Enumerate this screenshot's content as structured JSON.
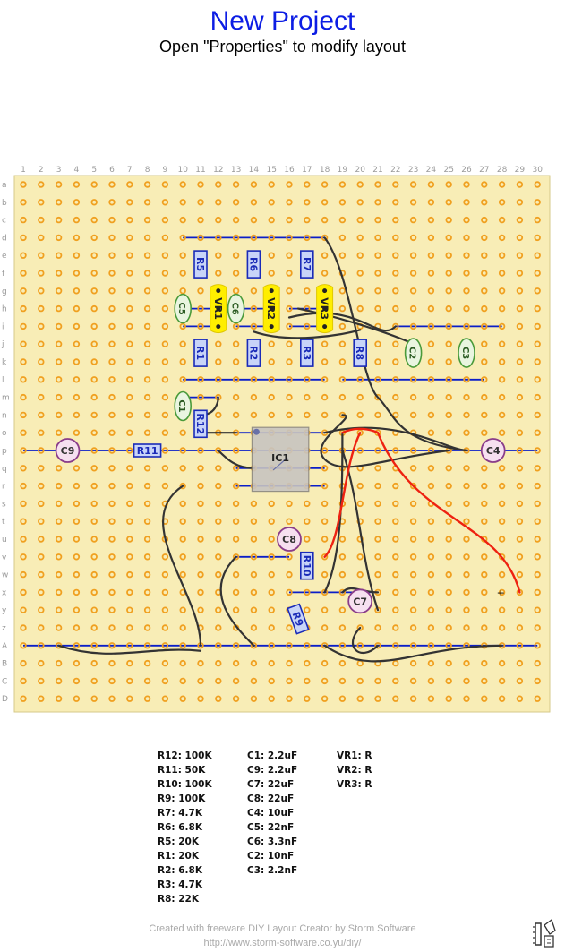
{
  "title": "New Project",
  "subtitle": "Open \"Properties\" to modify layout",
  "board": {
    "column_labels": [
      "1",
      "2",
      "3",
      "4",
      "5",
      "6",
      "7",
      "8",
      "9",
      "10",
      "11",
      "12",
      "13",
      "14",
      "15",
      "16",
      "17",
      "18",
      "19",
      "20",
      "21",
      "22",
      "23",
      "24",
      "25",
      "26",
      "27",
      "28",
      "29",
      "30"
    ],
    "row_labels": [
      "a",
      "b",
      "c",
      "d",
      "e",
      "f",
      "g",
      "h",
      "i",
      "j",
      "k",
      "l",
      "m",
      "n",
      "o",
      "p",
      "q",
      "r",
      "s",
      "t",
      "u",
      "v",
      "w",
      "x",
      "y",
      "z",
      "A",
      "B",
      "C",
      "D"
    ],
    "colors": {
      "board": "#f8edb6",
      "pad": "#f0a020",
      "strip": "#0b1ec8",
      "wire": "#333333",
      "red_wire": "#ee2211",
      "resistor_fill": "#c8d4f8",
      "resistor_border": "#1a2bb8",
      "pot": "#ffee00",
      "cap_ceramic": "#e9f5e0",
      "cap_ceramic_border": "#4a9a3a",
      "cap_electrolytic": "#f6e0f0",
      "cap_electrolytic_border": "#8a3d8a",
      "ic": "#c8c4c0"
    },
    "labels": {
      "C9": "C9",
      "R11": "R11",
      "C4": "C4",
      "IC1": "IC1",
      "C8": "C8",
      "R10": "R10",
      "C7": "C7",
      "R9": "R9",
      "R12": "R12",
      "C1": "C1",
      "R5": "R5",
      "R6": "R6",
      "R7": "R7",
      "VR1": "VR1",
      "VR2": "VR2",
      "VR3": "VR3",
      "C5": "C5",
      "C6": "C6",
      "R1": "R1",
      "R2": "R2",
      "R3": "R3",
      "R8": "R8",
      "C2": "C2",
      "C3": "C3"
    }
  },
  "bom": {
    "col1": [
      "R12: 100K",
      "R11: 50K",
      "R10: 100K",
      "R9: 100K",
      "R7: 4.7K",
      "R6: 6.8K",
      "R5: 20K",
      "R1: 20K",
      "R2: 6.8K",
      "R3: 4.7K",
      "R8: 22K"
    ],
    "col2": [
      "C1: 2.2uF",
      "C9: 2.2uF",
      "C7: 22uF",
      "C8: 22uF",
      "C4: 10uF",
      "C5: 22nF",
      "C6: 3.3nF",
      "C2: 10nF",
      "C3: 2.2nF"
    ],
    "col3": [
      "VR1: R",
      "VR2: R",
      "VR3: R"
    ]
  },
  "footer": {
    "line1": "Created with freeware DIY Layout Creator by Storm Software",
    "line2": "http://www.storm-software.co.yu/diy/"
  }
}
